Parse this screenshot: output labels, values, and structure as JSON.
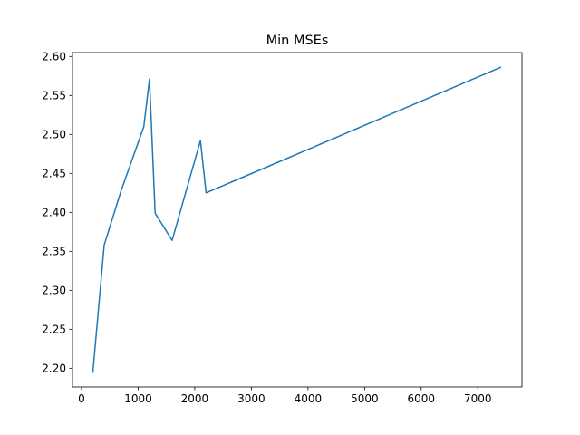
{
  "chart_data": {
    "type": "line",
    "title": "Min MSEs",
    "xlabel": "",
    "ylabel": "",
    "xlim": [
      -160,
      7780
    ],
    "ylim": [
      2.176,
      2.605
    ],
    "grid": false,
    "xticks": [
      0,
      1000,
      2000,
      3000,
      4000,
      5000,
      6000,
      7000
    ],
    "xtick_labels": [
      "0",
      "1000",
      "2000",
      "3000",
      "4000",
      "5000",
      "6000",
      "7000"
    ],
    "yticks": [
      2.2,
      2.25,
      2.3,
      2.35,
      2.4,
      2.45,
      2.5,
      2.55,
      2.6
    ],
    "ytick_labels": [
      "2.20",
      "2.25",
      "2.30",
      "2.35",
      "2.40",
      "2.45",
      "2.50",
      "2.55",
      "2.60"
    ],
    "series": [
      {
        "color": "#1f77b4",
        "x": [
          200,
          400,
          700,
          1100,
          1200,
          1300,
          1600,
          2100,
          2200,
          7400
        ],
        "y": [
          2.195,
          2.358,
          2.428,
          2.51,
          2.571,
          2.399,
          2.364,
          2.492,
          2.425,
          2.586
        ]
      }
    ]
  }
}
